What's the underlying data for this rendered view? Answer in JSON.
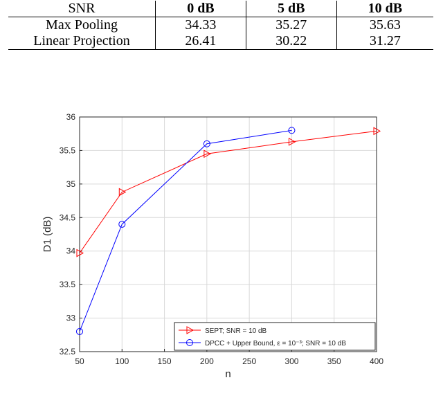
{
  "table": {
    "headers": [
      "SNR",
      "0 dB",
      "5 dB",
      "10 dB"
    ],
    "rows": [
      {
        "label": "Max Pooling",
        "values": [
          "34.33",
          "35.27",
          "35.63"
        ]
      },
      {
        "label": "Linear Projection",
        "values": [
          "26.41",
          "30.22",
          "31.27"
        ]
      }
    ]
  },
  "chart_data": {
    "type": "line",
    "xlabel": "n",
    "ylabel": "D1 (dB)",
    "xlim": [
      50,
      400
    ],
    "ylim": [
      32.5,
      36
    ],
    "xticks": [
      50,
      100,
      150,
      200,
      250,
      300,
      350,
      400
    ],
    "yticks": [
      32.5,
      33,
      33.5,
      34,
      34.5,
      35,
      35.5,
      36
    ],
    "grid": true,
    "legend_position": "bottom-right",
    "series": [
      {
        "name": "SEPT; SNR = 10 dB",
        "color": "#ff0000",
        "marker": "triangle-right",
        "x": [
          50,
          100,
          200,
          300,
          400
        ],
        "y": [
          33.97,
          34.88,
          35.45,
          35.63,
          35.79
        ]
      },
      {
        "name": "DPCC + Upper Bound, ε = 10⁻³; SNR = 10 dB",
        "color": "#0000ff",
        "marker": "circle",
        "x": [
          50,
          100,
          200,
          300
        ],
        "y": [
          32.8,
          34.4,
          35.6,
          35.8
        ]
      }
    ]
  }
}
